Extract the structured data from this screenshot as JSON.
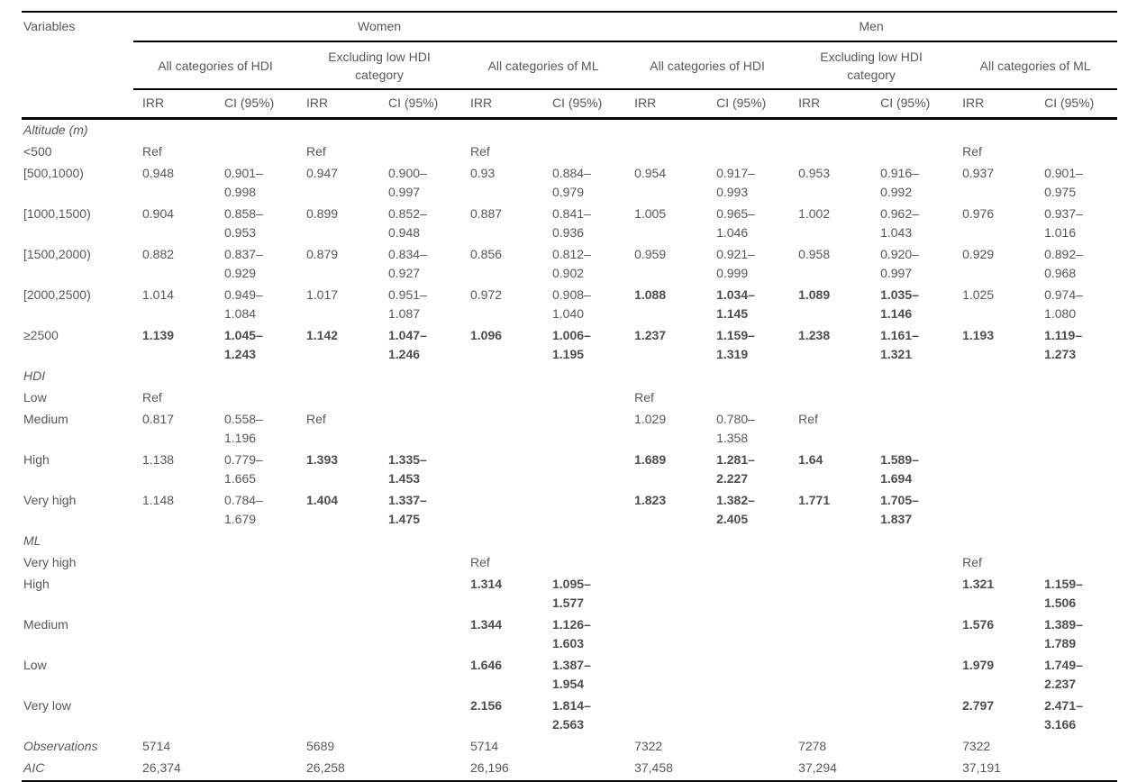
{
  "colors": {
    "text": "#58585b",
    "rule": "#000000",
    "background": "#ffffff"
  },
  "table": {
    "variables_header": "Variables",
    "groups": [
      {
        "label": "Women"
      },
      {
        "label": "Men"
      }
    ],
    "subgroups": [
      "All categories of HDI",
      "Excluding low HDI category",
      "All categories of ML"
    ],
    "measure_headers": [
      "IRR",
      "CI (95%)"
    ],
    "sections": [
      {
        "label": "Altitude (m)",
        "rows": [
          {
            "label": "<500",
            "cells": [
              {
                "irr": "Ref"
              },
              {
                "irr": "Ref"
              },
              {
                "irr": "Ref"
              },
              {},
              {},
              {
                "irr": "Ref"
              }
            ]
          },
          {
            "label": "[500,1000)",
            "cells": [
              {
                "irr": "0.948",
                "ci": "0.901–0.998"
              },
              {
                "irr": "0.947",
                "ci": "0.900–0.997"
              },
              {
                "irr": "0.93",
                "ci": "0.884–0.979"
              },
              {
                "irr": "0.954",
                "ci": "0.917–0.993"
              },
              {
                "irr": "0.953",
                "ci": "0.916–0.992"
              },
              {
                "irr": "0.937",
                "ci": "0.901–0.975"
              }
            ]
          },
          {
            "label": "[1000,1500)",
            "cells": [
              {
                "irr": "0.904",
                "ci": "0.858–0.953"
              },
              {
                "irr": "0.899",
                "ci": "0.852–0.948"
              },
              {
                "irr": "0.887",
                "ci": "0.841–0.936"
              },
              {
                "irr": "1.005",
                "ci": "0.965–1.046"
              },
              {
                "irr": "1.002",
                "ci": "0.962–1.043"
              },
              {
                "irr": "0.976",
                "ci": "0.937–1.016"
              }
            ]
          },
          {
            "label": "[1500,2000)",
            "cells": [
              {
                "irr": "0.882",
                "ci": "0.837–0.929"
              },
              {
                "irr": "0.879",
                "ci": "0.834–0.927"
              },
              {
                "irr": "0.856",
                "ci": "0.812–0.902"
              },
              {
                "irr": "0.959",
                "ci": "0.921–0.999"
              },
              {
                "irr": "0.958",
                "ci": "0.920–0.997"
              },
              {
                "irr": "0.929",
                "ci": "0.892–0.968"
              }
            ]
          },
          {
            "label": "[2000,2500)",
            "cells": [
              {
                "irr": "1.014",
                "ci": "0.949–1.084"
              },
              {
                "irr": "1.017",
                "ci": "0.951–1.087"
              },
              {
                "irr": "0.972",
                "ci": "0.908–1.040"
              },
              {
                "irr": "1.088",
                "ci": "1.034–1.145",
                "bold": true
              },
              {
                "irr": "1.089",
                "ci": "1.035–1.146",
                "bold": true
              },
              {
                "irr": "1.025",
                "ci": "0.974–1.080"
              }
            ]
          },
          {
            "label": "≥2500",
            "cells": [
              {
                "irr": "1.139",
                "ci": "1.045–1.243",
                "bold": true
              },
              {
                "irr": "1.142",
                "ci": "1.047–1.246",
                "bold": true
              },
              {
                "irr": "1.096",
                "ci": "1.006–1.195",
                "bold": true
              },
              {
                "irr": "1.237",
                "ci": "1.159–1.319",
                "bold": true
              },
              {
                "irr": "1.238",
                "ci": "1.161–1.321",
                "bold": true
              },
              {
                "irr": "1.193",
                "ci": "1.119–1.273",
                "bold": true
              }
            ]
          }
        ]
      },
      {
        "label": "HDI",
        "rows": [
          {
            "label": "Low",
            "cells": [
              {
                "irr": "Ref"
              },
              {},
              {},
              {
                "irr": "Ref"
              },
              {},
              {}
            ]
          },
          {
            "label": "Medium",
            "cells": [
              {
                "irr": "0.817",
                "ci": "0.558–1.196"
              },
              {
                "irr": "Ref"
              },
              {},
              {
                "irr": "1.029",
                "ci": "0.780–1.358"
              },
              {
                "irr": "Ref"
              },
              {}
            ]
          },
          {
            "label": "High",
            "cells": [
              {
                "irr": "1.138",
                "ci": "0.779–1.665"
              },
              {
                "irr": "1.393",
                "ci": "1.335–1.453",
                "bold": true
              },
              {},
              {
                "irr": "1.689",
                "ci": "1.281–2.227",
                "bold": true
              },
              {
                "irr": "1.64",
                "ci": "1.589–1.694",
                "bold": true
              },
              {}
            ]
          },
          {
            "label": "Very high",
            "cells": [
              {
                "irr": "1.148",
                "ci": "0.784–1.679"
              },
              {
                "irr": "1.404",
                "ci": "1.337–1.475",
                "bold": true
              },
              {},
              {
                "irr": "1.823",
                "ci": "1.382–2.405",
                "bold": true
              },
              {
                "irr": "1.771",
                "ci": "1.705–1.837",
                "bold": true
              },
              {}
            ]
          }
        ]
      },
      {
        "label": "ML",
        "rows": [
          {
            "label": "Very high",
            "cells": [
              {},
              {},
              {
                "irr": "Ref"
              },
              {},
              {},
              {
                "irr": "Ref"
              }
            ]
          },
          {
            "label": "High",
            "cells": [
              {},
              {},
              {
                "irr": "1.314",
                "ci": "1.095–1.577",
                "bold": true
              },
              {},
              {},
              {
                "irr": "1.321",
                "ci": "1.159–1.506",
                "bold": true
              }
            ]
          },
          {
            "label": "Medium",
            "cells": [
              {},
              {},
              {
                "irr": "1.344",
                "ci": "1.126–1.603",
                "bold": true
              },
              {},
              {},
              {
                "irr": "1.576",
                "ci": "1.389–1.789",
                "bold": true
              }
            ]
          },
          {
            "label": "Low",
            "cells": [
              {},
              {},
              {
                "irr": "1.646",
                "ci": "1.387–1.954",
                "bold": true
              },
              {},
              {},
              {
                "irr": "1.979",
                "ci": "1.749–2.237",
                "bold": true
              }
            ]
          },
          {
            "label": "Very low",
            "cells": [
              {},
              {},
              {
                "irr": "2.156",
                "ci": "1.814–2.563",
                "bold": true
              },
              {},
              {},
              {
                "irr": "2.797",
                "ci": "2.471–3.166",
                "bold": true
              }
            ]
          }
        ]
      }
    ],
    "footer_rows": [
      {
        "label": "Observations",
        "values": [
          "5714",
          "5689",
          "5714",
          "7322",
          "7278",
          "7322"
        ]
      },
      {
        "label": "AIC",
        "values": [
          "26,374",
          "26,258",
          "26,196",
          "37,458",
          "37,294",
          "37,191"
        ]
      }
    ]
  }
}
